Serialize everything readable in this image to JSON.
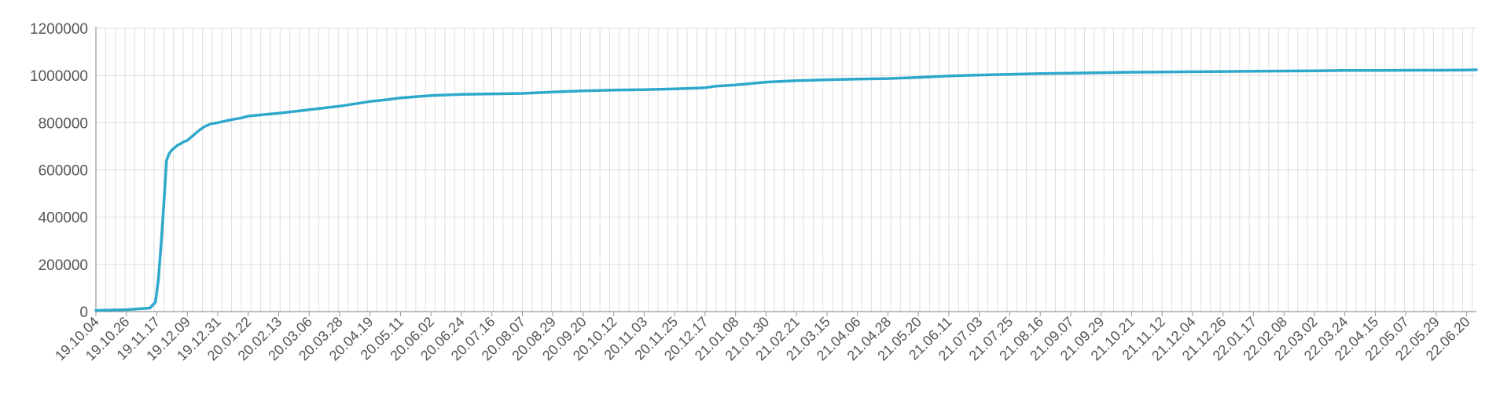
{
  "chart_data": {
    "type": "line",
    "title": "",
    "xlabel": "",
    "ylabel": "",
    "ylim": [
      0,
      1200000
    ],
    "y_ticks": [
      0,
      200000,
      400000,
      600000,
      800000,
      1000000,
      1200000
    ],
    "x_tick_labels": [
      "19.10.04",
      "19.10.26",
      "19.11.17",
      "19.12.09",
      "19.12.31",
      "20.01.22",
      "20.02.13",
      "20.03.06",
      "20.03.28",
      "20.04.19",
      "20.05.11",
      "20.06.02",
      "20.06.24",
      "20.07.16",
      "20.08.07",
      "20.08.29",
      "20.09.20",
      "20.10.12",
      "20.11.03",
      "20.11.25",
      "20.12.17",
      "21.01.08",
      "21.01.30",
      "21.02.21",
      "21.03.15",
      "21.04.06",
      "21.04.28",
      "21.05.20",
      "21.06.11",
      "21.07.03",
      "21.07.25",
      "21.08.16",
      "21.09.07",
      "21.09.29",
      "21.10.21",
      "21.11.12",
      "21.12.04",
      "21.12.26",
      "22.01.17",
      "22.02.08",
      "22.03.02",
      "22.03.24",
      "22.04.15",
      "22.05.07",
      "22.05.29",
      "22.06.20"
    ],
    "grid": true,
    "line_color": "#2ea8cc",
    "series": [
      {
        "x": [
          "19.10.04",
          "19.10.26",
          "19.11.12",
          "19.11.16",
          "19.11.18",
          "19.11.20",
          "19.11.22",
          "19.11.24",
          "19.11.26",
          "19.11.28",
          "19.11.30",
          "19.12.02",
          "19.12.04",
          "19.12.06",
          "19.12.09",
          "19.12.13",
          "19.12.18",
          "19.12.22",
          "19.12.26",
          "19.12.31",
          "20.01.06",
          "20.01.12",
          "20.01.17",
          "20.01.22",
          "20.02.13",
          "20.03.06",
          "20.03.28",
          "20.04.19",
          "20.04.30",
          "20.05.11",
          "20.06.02",
          "20.06.24",
          "20.07.16",
          "20.08.07",
          "20.08.29",
          "20.09.20",
          "20.10.12",
          "20.11.03",
          "20.11.25",
          "20.12.17",
          "20.12.25",
          "21.01.08",
          "21.01.30",
          "21.02.21",
          "21.03.15",
          "21.04.06",
          "21.04.28",
          "21.05.20",
          "21.06.11",
          "21.07.03",
          "21.07.25",
          "21.08.16",
          "21.09.07",
          "21.09.29",
          "21.10.21",
          "21.11.12",
          "21.12.04",
          "21.12.26",
          "22.01.17",
          "22.02.08",
          "22.03.02",
          "22.03.24",
          "22.04.15",
          "22.05.07",
          "22.05.29",
          "22.06.20",
          "22.06.27"
        ],
        "values": [
          5000,
          8000,
          15000,
          40000,
          130000,
          280000,
          450000,
          640000,
          670000,
          685000,
          695000,
          705000,
          710000,
          718000,
          725000,
          745000,
          770000,
          785000,
          795000,
          800000,
          808000,
          815000,
          820000,
          828000,
          840000,
          855000,
          870000,
          890000,
          897000,
          905000,
          915000,
          920000,
          922000,
          924000,
          930000,
          935000,
          938000,
          940000,
          943000,
          948000,
          955000,
          960000,
          972000,
          978000,
          982000,
          985000,
          987000,
          992000,
          998000,
          1002000,
          1005000,
          1008000,
          1010000,
          1012000,
          1014000,
          1015000,
          1016000,
          1017000,
          1018000,
          1019000,
          1020000,
          1021000,
          1021000,
          1022000,
          1022000,
          1023000,
          1024000
        ]
      }
    ]
  }
}
